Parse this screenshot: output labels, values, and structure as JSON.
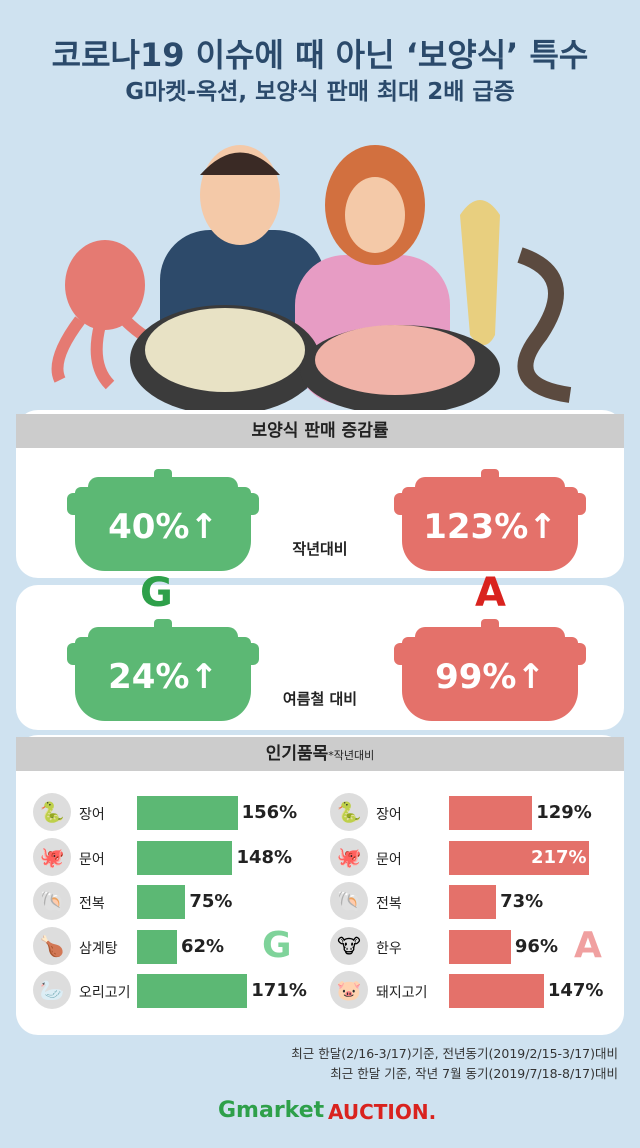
{
  "header": {
    "title": "코로나19 이슈에 때 아닌 ‘보양식’ 특수",
    "subtitle": "G마켓-옥션, 보양식 판매 최대 2배 급증"
  },
  "colors": {
    "gmarket": "#5cb874",
    "auction": "#e4716a",
    "title": "#2b4a6b",
    "background": "#cfe2f0"
  },
  "growth": {
    "heading": "보양식 판매 증감률",
    "yoy": {
      "label": "작년대비",
      "gmarket": "40%↑",
      "auction": "123%↑"
    },
    "summer": {
      "label": "여름철 대비",
      "gmarket": "24%↑",
      "auction": "99%↑"
    },
    "gmarket_mark": "G",
    "auction_mark": "A"
  },
  "popular": {
    "heading": "인기품목",
    "note": "*작년대비"
  },
  "chart_data": [
    {
      "type": "bar",
      "orientation": "horizontal",
      "series": [
        {
          "name": "G",
          "values": [
            156,
            148,
            75,
            62,
            171
          ]
        }
      ],
      "categories": [
        "장어",
        "문어",
        "전복",
        "삼계탕",
        "오리고기"
      ],
      "labels": [
        "156%",
        "148%",
        "75%",
        "62%",
        "171%"
      ],
      "icons": [
        "eel-icon",
        "octopus-icon",
        "abalone-icon",
        "samgyetang-icon",
        "duck-icon"
      ]
    },
    {
      "type": "bar",
      "orientation": "horizontal",
      "series": [
        {
          "name": "A",
          "values": [
            129,
            217,
            73,
            96,
            147
          ]
        }
      ],
      "categories": [
        "장어",
        "문어",
        "전복",
        "한우",
        "돼지고기"
      ],
      "labels": [
        "129%",
        "217%",
        "73%",
        "96%",
        "147%"
      ],
      "icons": [
        "eel-icon",
        "octopus-icon",
        "abalone-icon",
        "cow-icon",
        "pig-icon"
      ]
    }
  ],
  "footnotes": [
    "최근 한달(2/16-3/17)기준, 전년동기(2019/2/15-3/17)대비",
    "최근 한달 기준, 작년 7월 동기(2019/7/18-8/17)대비"
  ],
  "logos": {
    "gmarket": "Gmarket",
    "auction": "AUCTION."
  }
}
